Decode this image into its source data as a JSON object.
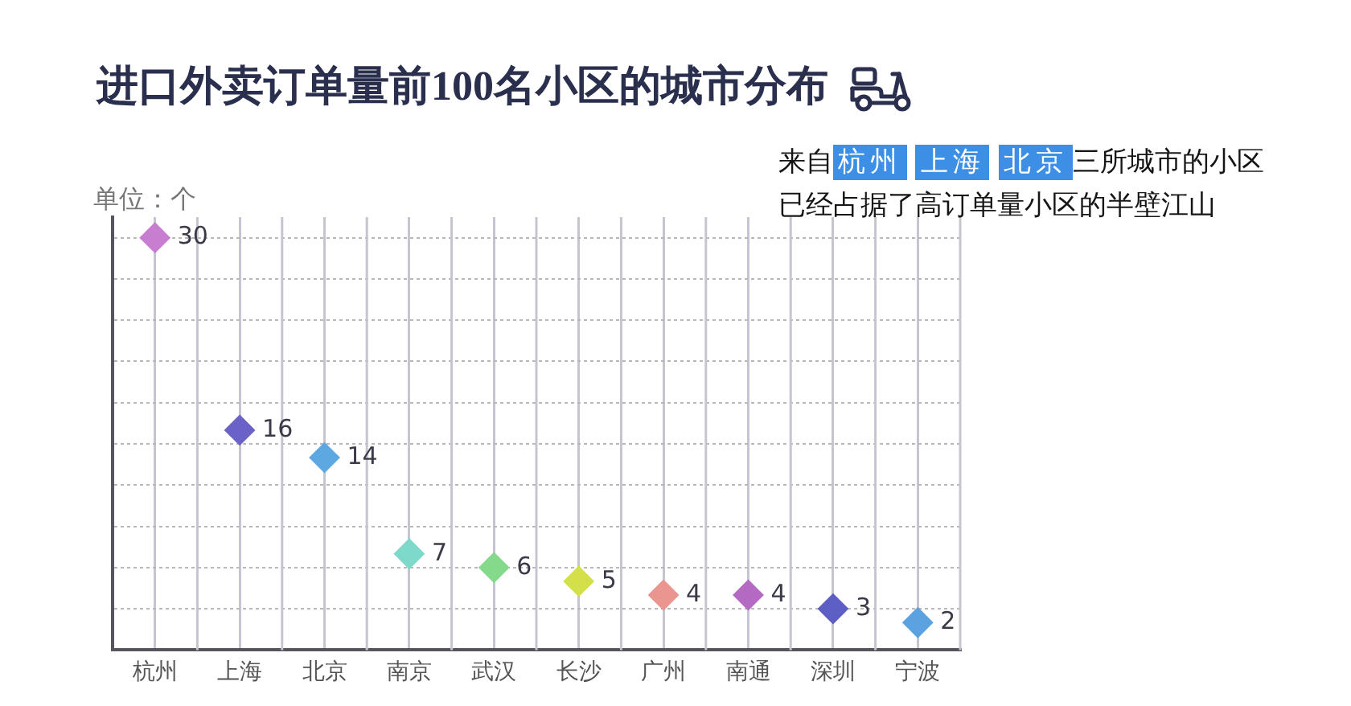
{
  "chart_data": {
    "type": "scatter",
    "title": "进口外卖订单量前100名小区的城市分布",
    "ylabel": "单位：个",
    "categories": [
      "杭州",
      "上海",
      "北京",
      "南京",
      "武汉",
      "长沙",
      "广州",
      "南通",
      "深圳",
      "宁波"
    ],
    "values": [
      30,
      16,
      14,
      7,
      6,
      5,
      4,
      4,
      3,
      2
    ],
    "colors": [
      "#c77dd0",
      "#6a62c6",
      "#5ea8e2",
      "#7ddacb",
      "#85d98a",
      "#d4e04a",
      "#ea9590",
      "#b56ac2",
      "#5e5fc4",
      "#5aa2e0"
    ],
    "marker": "diamond",
    "data_labels": true,
    "grid": true,
    "legend": false,
    "tick_labels": "x",
    "ylim": [
      0,
      31.5
    ],
    "yticks": [
      {
        "value": 0,
        "label": null
      },
      {
        "value": 3,
        "label": null
      },
      {
        "value": 6,
        "label": null
      },
      {
        "value": 9,
        "label": null
      },
      {
        "value": 12,
        "label": null
      },
      {
        "value": 15,
        "label": null
      },
      {
        "value": 18,
        "label": null
      },
      {
        "value": 21,
        "label": null
      },
      {
        "value": 24,
        "label": null
      },
      {
        "value": 27,
        "label": null
      },
      {
        "value": 30,
        "label": null
      }
    ],
    "annotations": [
      "来自杭州 上海 北京三所城市的小区",
      "已经占据了高订单量小区的半壁江山"
    ]
  }
}
